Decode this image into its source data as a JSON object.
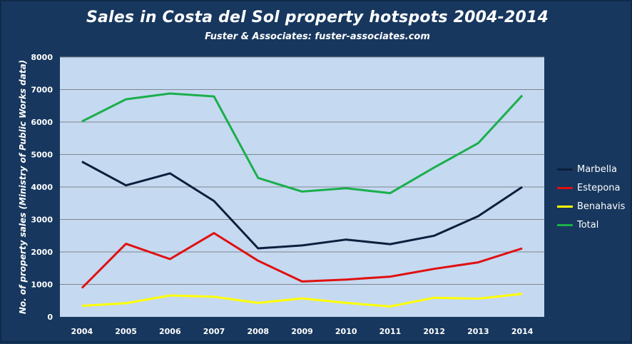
{
  "header": {
    "title": "Sales in Costa del Sol property hotspots 2004-2014",
    "subtitle": "Fuster & Associates: fuster-associates.com"
  },
  "colors": {
    "background": "#17375e",
    "plot_area": "#c5d9f1",
    "gridline": "#7f8790"
  },
  "chart_data": {
    "type": "line",
    "title": "Sales in Costa del Sol property hotspots 2004-2014",
    "subtitle": "Fuster & Associates: fuster-associates.com",
    "xlabel": "",
    "ylabel": "No. of property sales (Ministry of Public Works data)",
    "categories": [
      "2004",
      "2005",
      "2006",
      "2007",
      "2008",
      "2009",
      "2010",
      "2011",
      "2012",
      "2013",
      "2014"
    ],
    "ylim": [
      0,
      8000
    ],
    "yticks": [
      "0",
      "1000",
      "2000",
      "3000",
      "4000",
      "5000",
      "6000",
      "7000",
      "8000"
    ],
    "grid": true,
    "legend_position": "right",
    "series": [
      {
        "name": "Marbella",
        "color": "#0d1f3c",
        "values": [
          4780,
          4050,
          4420,
          3570,
          2110,
          2200,
          2380,
          2240,
          2500,
          3100,
          4000
        ]
      },
      {
        "name": "Estepona",
        "color": "#e01010",
        "values": [
          890,
          2250,
          1780,
          2580,
          1730,
          1090,
          1150,
          1240,
          1480,
          1680,
          2110
        ]
      },
      {
        "name": "Benahavis",
        "color": "#ffff00",
        "values": [
          340,
          420,
          660,
          620,
          430,
          570,
          430,
          320,
          590,
          560,
          710
        ]
      },
      {
        "name": "Total",
        "color": "#1aaf4b",
        "values": [
          6020,
          6700,
          6880,
          6790,
          4280,
          3860,
          3960,
          3810,
          4600,
          5350,
          6820
        ]
      }
    ]
  }
}
